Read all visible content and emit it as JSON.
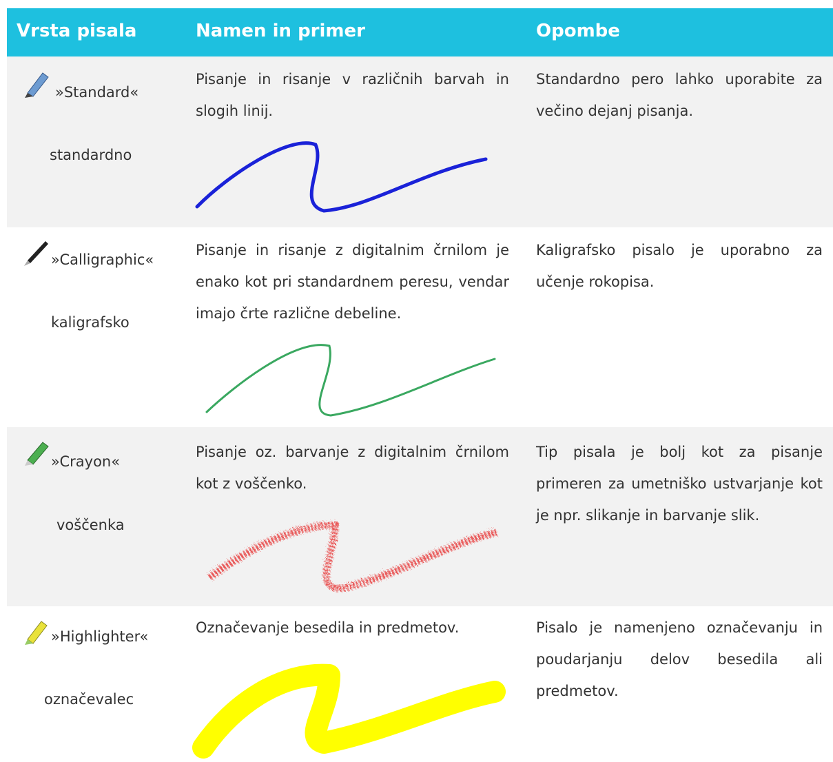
{
  "table": {
    "headers": [
      "Vrsta pisala",
      "Namen in primer",
      "Opombe"
    ],
    "rows": [
      {
        "name": "»Standard«",
        "label": "standardno",
        "purpose": "Pisanje in risanje v različnih barvah in slogih linij.",
        "notes": "Standardno pero lahko uporabite za večino dejanj pisanja."
      },
      {
        "name": "»Calligraphic«",
        "label": "kaligrafsko",
        "purpose": "Pisanje in risanje z digitalnim črnilom je enako kot pri standardnem peresu, vendar imajo črte različne debeline.",
        "notes": "Kaligrafsko pisalo je uporabno za učenje rokopisa."
      },
      {
        "name": "»Crayon«",
        "label": "voščenka",
        "purpose": "Pisanje oz. barvanje z digitalnim črnilom kot z voščenko.",
        "notes": "Tip pisala je bolj kot za pisanje primeren za umetniško ustvarjanje kot je npr. slikanje in barvanje slik."
      },
      {
        "name": "»Highlighter«",
        "label": "označevalec",
        "purpose": "Označevanje besedila in predmetov.",
        "notes": "Pisalo je namenjeno označevanju in poudarjanju delov besedila ali predmetov."
      }
    ]
  }
}
